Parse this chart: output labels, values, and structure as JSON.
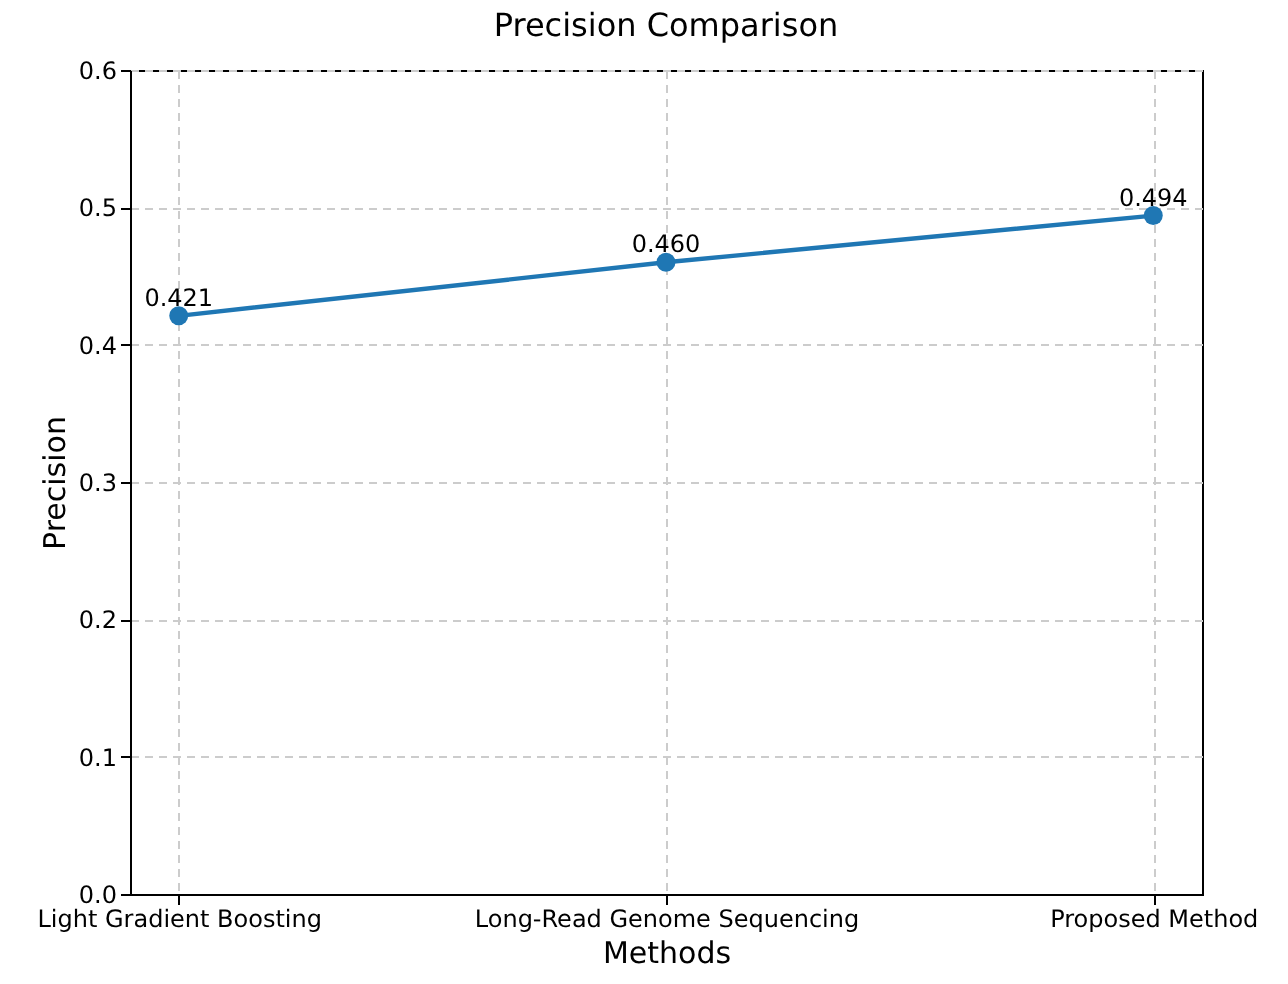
{
  "chart_data": {
    "type": "line",
    "title": "Precision Comparison",
    "xlabel": "Methods",
    "ylabel": "Precision",
    "categories": [
      "Light Gradient Boosting",
      "Long-Read Genome Sequencing",
      "Proposed Method"
    ],
    "series": [
      {
        "color": "#1f77b4",
        "values": [
          0.421,
          0.46,
          0.494
        ],
        "value_labels": [
          "0.421",
          "0.460",
          "0.494"
        ]
      }
    ],
    "ylim": [
      0,
      0.6
    ],
    "yticks": [
      {
        "value": 0,
        "label": "0.0"
      },
      0.1,
      0.2,
      0.3,
      0.4,
      0.5,
      0.6
    ],
    "grid": true,
    "marker": "circle",
    "line_style": "solid",
    "legend": false
  }
}
